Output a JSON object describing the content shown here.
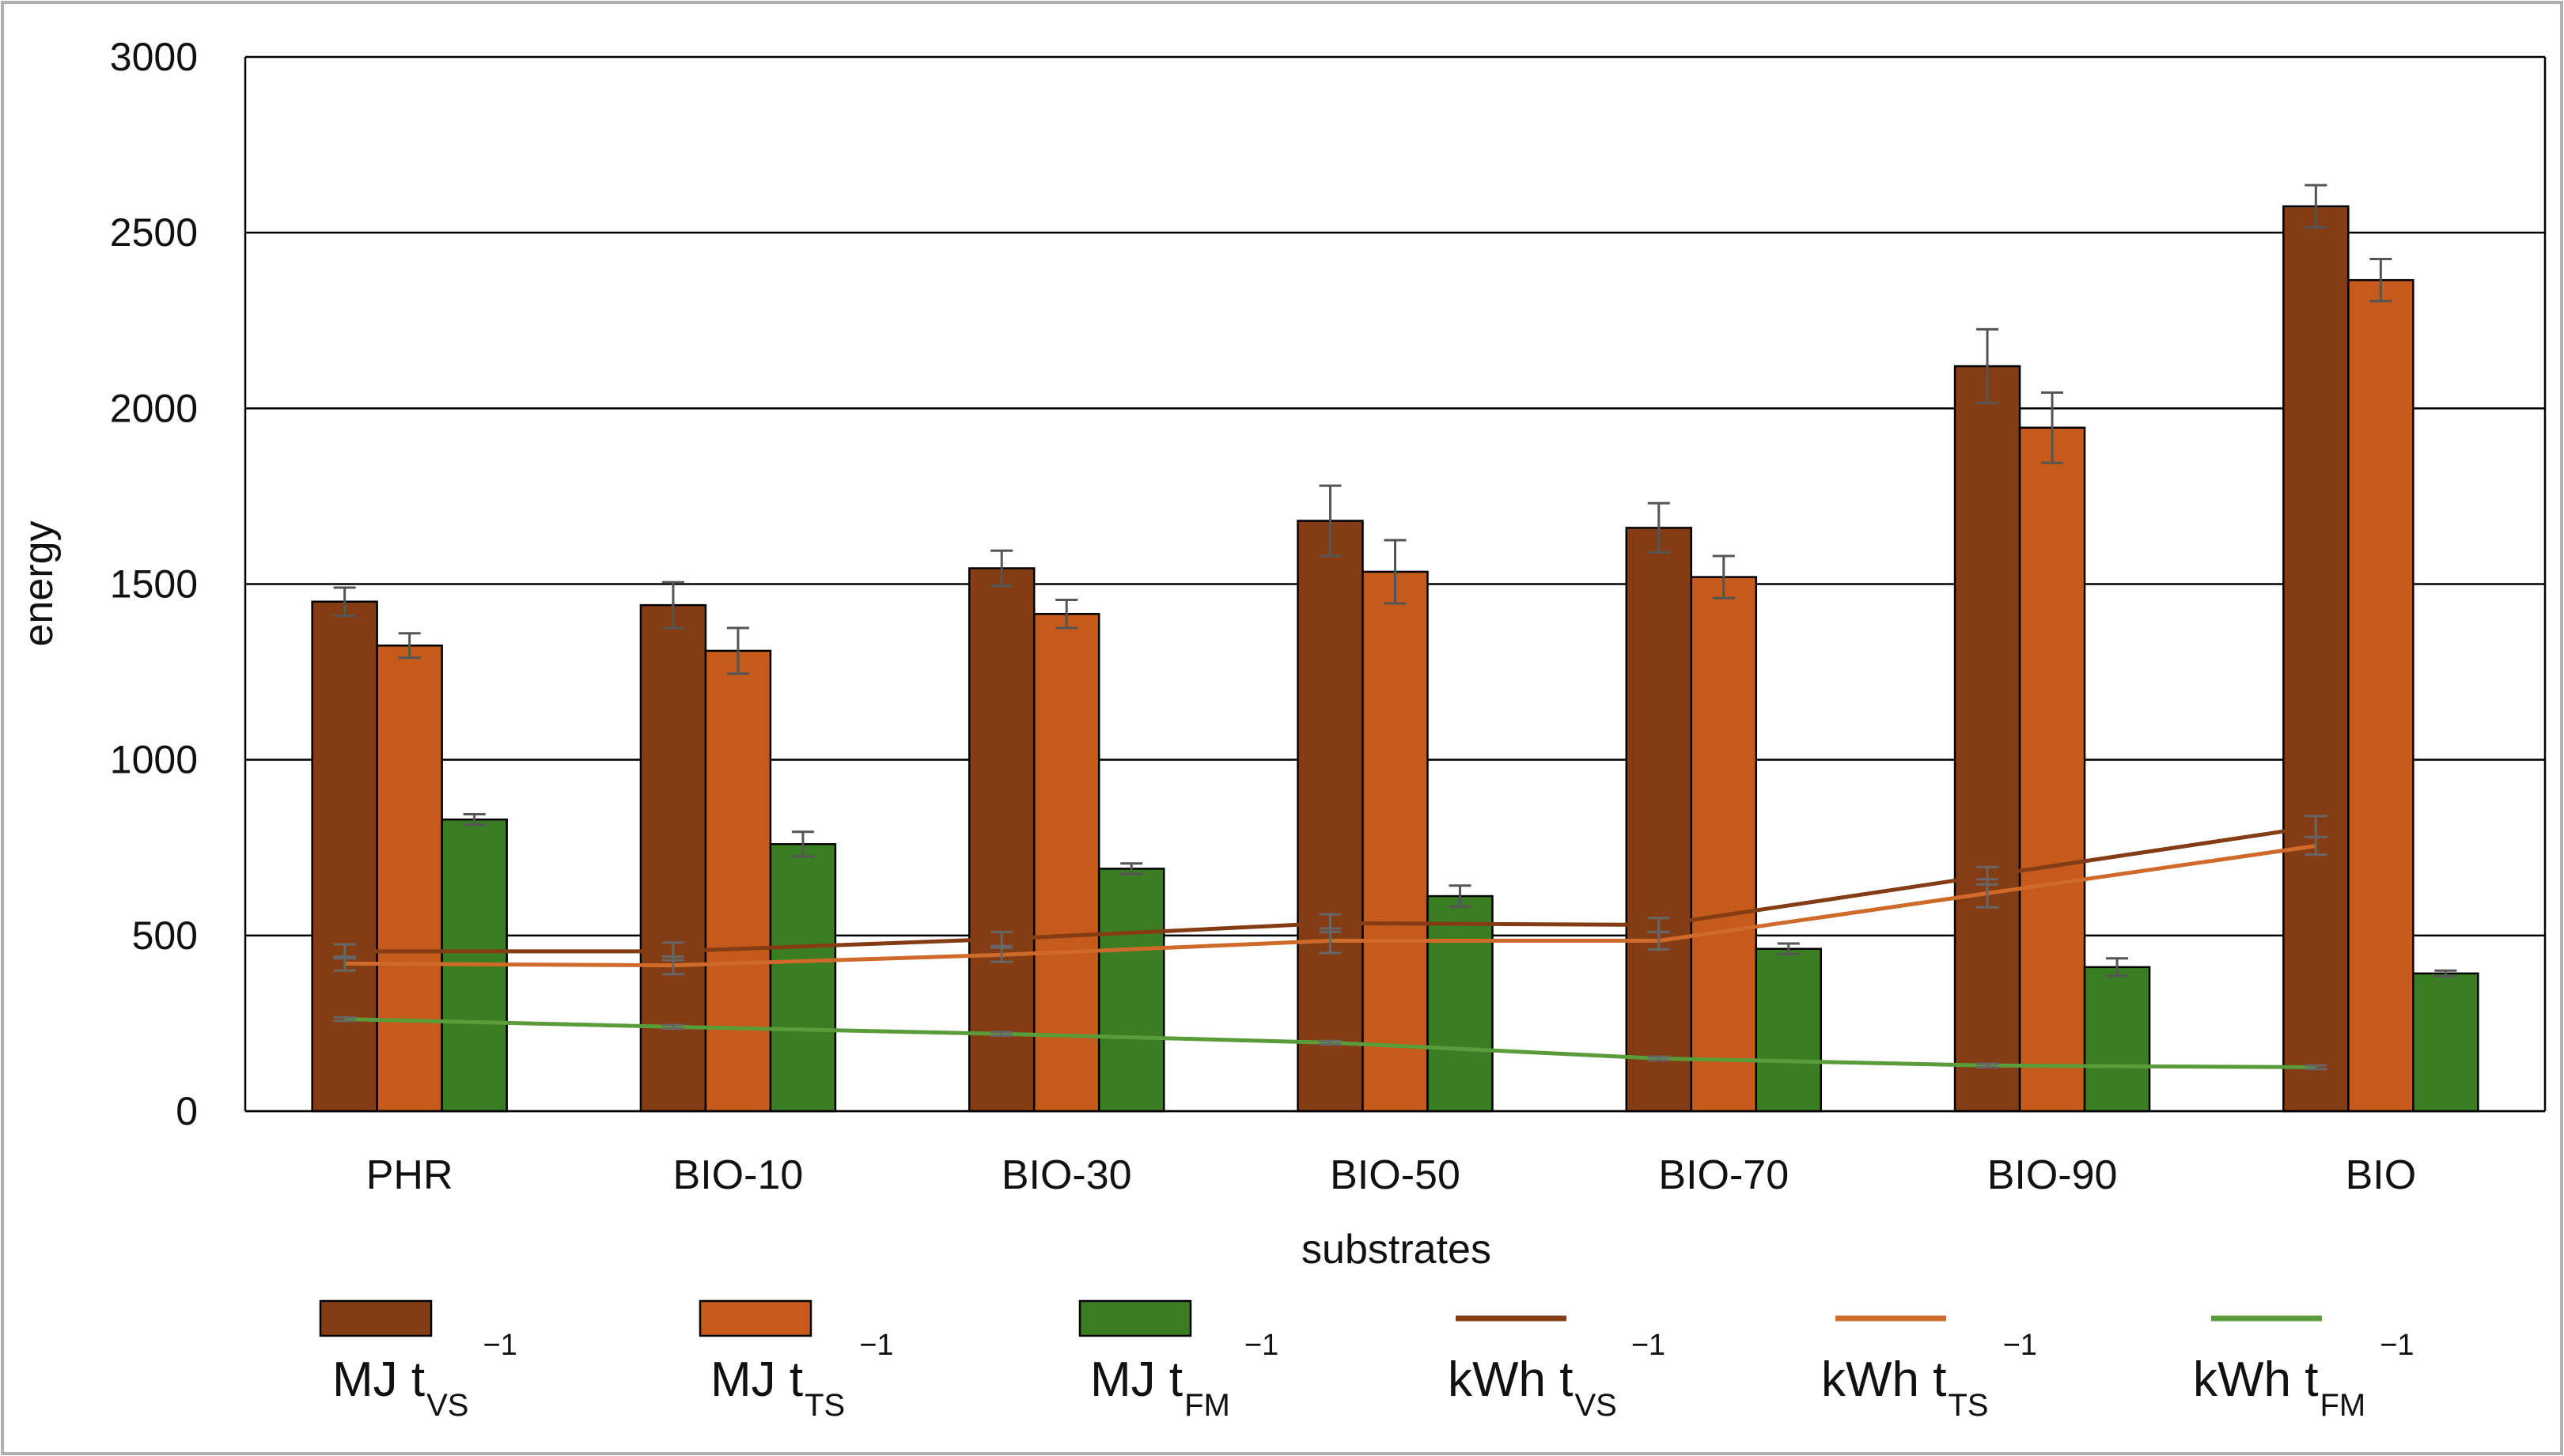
{
  "chart_data": {
    "type": "bar",
    "xlabel": "substrates",
    "ylabel": "energy",
    "ylim": [
      0,
      3000
    ],
    "yticks": [
      0,
      500,
      1000,
      1500,
      2000,
      2500,
      3000
    ],
    "grid": true,
    "legend_position": "bottom",
    "categories": [
      "PHR",
      "BIO-10",
      "BIO-30",
      "BIO-50",
      "BIO-70",
      "BIO-90",
      "BIO"
    ],
    "bar_series": [
      {
        "name": "MJ t_VS^-1",
        "label": "MJ t",
        "sub": "VS",
        "sup": "−1",
        "color": "#843c14",
        "values": [
          1450,
          1440,
          1545,
          1680,
          1660,
          2120,
          2575
        ],
        "errors": [
          40,
          65,
          50,
          100,
          70,
          105,
          60
        ]
      },
      {
        "name": "MJ t_TS^-1",
        "label": "MJ t",
        "sub": "TS",
        "sup": "−1",
        "color": "#c55a1b",
        "values": [
          1325,
          1310,
          1415,
          1535,
          1520,
          1945,
          2365
        ],
        "errors": [
          35,
          65,
          40,
          90,
          60,
          100,
          60
        ]
      },
      {
        "name": "MJ t_FM^-1",
        "label": "MJ t",
        "sub": "FM",
        "sup": "−1",
        "color": "#3a7d23",
        "values": [
          830,
          760,
          690,
          612,
          462,
          410,
          392
        ],
        "errors": [
          15,
          35,
          15,
          30,
          15,
          25,
          8
        ]
      }
    ],
    "line_series": [
      {
        "name": "kWh t_VS^-1",
        "label": "kWh t",
        "sub": "VS",
        "sup": "−1",
        "color": "#843c14",
        "values": [
          455,
          455,
          490,
          535,
          530,
          670,
          810
        ],
        "errors": [
          20,
          25,
          20,
          25,
          20,
          25,
          30
        ]
      },
      {
        "name": "kWh t_TS^-1",
        "label": "kWh t",
        "sub": "TS",
        "sup": "−1",
        "color": "#d06a2a",
        "values": [
          420,
          415,
          445,
          485,
          485,
          620,
          755
        ],
        "errors": [
          20,
          25,
          20,
          35,
          25,
          40,
          25
        ]
      },
      {
        "name": "kWh t_FM^-1",
        "label": "kWh t",
        "sub": "FM",
        "sup": "−1",
        "color": "#5a9c3a",
        "values": [
          262,
          240,
          220,
          195,
          150,
          130,
          125
        ],
        "errors": [
          5,
          5,
          5,
          5,
          5,
          5,
          5
        ]
      }
    ]
  }
}
